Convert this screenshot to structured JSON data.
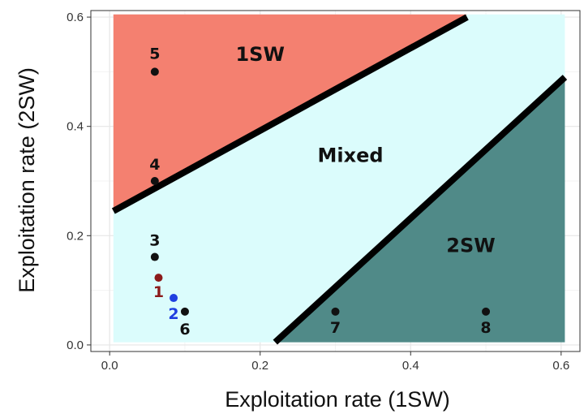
{
  "chart_data": {
    "type": "scatter",
    "xlabel": "Exploitation rate (1SW)",
    "ylabel": "Exploitation rate (2SW)",
    "xlim": [
      -0.025,
      0.625
    ],
    "ylim": [
      -0.012,
      0.612
    ],
    "x_ticks": [
      "0.0",
      "0.2",
      "0.4",
      "0.6"
    ],
    "y_ticks": [
      "0.0",
      "0.2",
      "0.4",
      "0.6"
    ],
    "grid": true,
    "regions": [
      {
        "label": "1SW",
        "color": "#f48070",
        "polygon": [
          [
            0.005,
            0.605
          ],
          [
            0.475,
            0.605
          ],
          [
            0.005,
            0.245
          ]
        ]
      },
      {
        "label": "Mixed",
        "color": "#dbfcfc",
        "polygon": [
          [
            0.005,
            0.005
          ],
          [
            0.605,
            0.005
          ],
          [
            0.605,
            0.605
          ],
          [
            0.005,
            0.605
          ]
        ]
      },
      {
        "label": "2SW",
        "color": "#508a88",
        "polygon": [
          [
            0.22,
            0.005
          ],
          [
            0.605,
            0.005
          ],
          [
            0.605,
            0.49
          ]
        ]
      }
    ],
    "region_labels": [
      {
        "text": "1SW",
        "x": 0.2,
        "y": 0.52
      },
      {
        "text": "Mixed",
        "x": 0.32,
        "y": 0.335
      },
      {
        "text": "2SW",
        "x": 0.48,
        "y": 0.17
      }
    ],
    "boundaries": [
      {
        "from": [
          0.005,
          0.245
        ],
        "to": [
          0.475,
          0.6
        ]
      },
      {
        "from": [
          0.22,
          0.005
        ],
        "to": [
          0.605,
          0.49
        ]
      }
    ],
    "points": [
      {
        "label": "1",
        "x": 0.065,
        "y": 0.123,
        "color": "#8b1a1a"
      },
      {
        "label": "2",
        "x": 0.085,
        "y": 0.086,
        "color": "#1f3fe0"
      },
      {
        "label": "3",
        "x": 0.06,
        "y": 0.161,
        "color": "#111111"
      },
      {
        "label": "4",
        "x": 0.06,
        "y": 0.3,
        "color": "#111111"
      },
      {
        "label": "5",
        "x": 0.06,
        "y": 0.5,
        "color": "#111111"
      },
      {
        "label": "6",
        "x": 0.1,
        "y": 0.061,
        "color": "#111111"
      },
      {
        "label": "7",
        "x": 0.3,
        "y": 0.061,
        "color": "#111111"
      },
      {
        "label": "8",
        "x": 0.5,
        "y": 0.061,
        "color": "#111111"
      }
    ]
  }
}
